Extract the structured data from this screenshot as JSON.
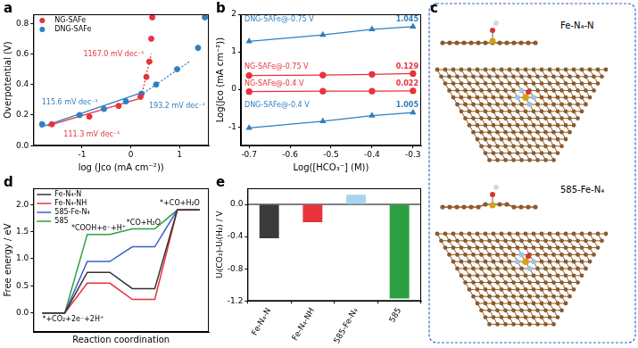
{
  "chart_data": [
    {
      "panel": "a",
      "type": "scatter",
      "x_label": "log (Jco (mA cm⁻²))",
      "y_label": "Overpotential (V)",
      "xlim": [
        -2,
        1.6
      ],
      "xticks": [
        -1,
        0,
        1
      ],
      "ylim": [
        0,
        0.86
      ],
      "yticks": [
        {
          "value": 0,
          "label": "0.0"
        },
        0.2,
        0.4,
        0.6,
        0.8
      ],
      "grid": false,
      "legend": "upper left",
      "series": [
        {
          "name": "NG-SAFe",
          "color": "#e8323c",
          "marker": "circle",
          "x": [
            -1.62,
            -0.85,
            -0.25,
            0.2,
            0.32,
            0.38,
            0.42,
            0.44
          ],
          "values": [
            0.14,
            0.19,
            0.26,
            0.32,
            0.45,
            0.55,
            0.7,
            0.84
          ]
        },
        {
          "name": "DNG-SAFe",
          "color": "#2f7fc1",
          "marker": "circle",
          "x": [
            -1.82,
            -1.05,
            -0.55,
            -0.1,
            0.22,
            0.52,
            0.95,
            1.38,
            1.52
          ],
          "values": [
            0.14,
            0.2,
            0.24,
            0.29,
            0.34,
            0.4,
            0.5,
            0.64,
            0.84
          ]
        }
      ],
      "annotations": [
        {
          "text": "115.6 mV dec⁻¹",
          "color": "#2f7fc1",
          "line_style": "solid",
          "x": [
            -1.85,
            0.25
          ],
          "values": [
            0.12,
            0.35
          ],
          "at": [
            -1.25,
            0.28
          ]
        },
        {
          "text": "111.3 mV dec⁻¹",
          "color": "#e8323c",
          "line_style": "solid",
          "x": [
            -1.7,
            0.2
          ],
          "values": [
            0.13,
            0.31
          ],
          "at": [
            -0.8,
            0.07
          ]
        },
        {
          "text": "1167.0 mV dec⁻¹",
          "color": "#e8323c",
          "line_style": "dotted",
          "x": [
            0.2,
            0.42
          ],
          "values": [
            0.3,
            0.6
          ],
          "at": [
            -0.35,
            0.6
          ]
        },
        {
          "text": "193.2 mV dec⁻¹",
          "color": "#2f7fc1",
          "line_style": "dotted",
          "x": [
            0.2,
            1.2
          ],
          "values": [
            0.33,
            0.55
          ],
          "at": [
            0.95,
            0.26
          ]
        }
      ]
    },
    {
      "panel": "b",
      "type": "line",
      "x_label": "Log([HCO₃⁻] (M))",
      "y_label": "Log(Jco (mA cm⁻²))",
      "x": [
        -0.7,
        -0.52,
        -0.4,
        -0.3
      ],
      "xlim": [
        -0.72,
        -0.28
      ],
      "xticks": [
        -0.7,
        -0.6,
        -0.5,
        -0.4,
        -0.3
      ],
      "ylim": [
        -1.5,
        2
      ],
      "yticks": [
        -1,
        0,
        1,
        2
      ],
      "grid": false,
      "series": [
        {
          "name": "DNG-SAFe@-0.75 V",
          "color": "#2f7fc1",
          "marker": "triangle",
          "values": [
            1.28,
            1.45,
            1.6,
            1.67
          ],
          "slope": 1.045
        },
        {
          "name": "NG-SAFe@-0.75 V",
          "color": "#e8323c",
          "marker": "circle",
          "values": [
            0.37,
            0.38,
            0.4,
            0.42
          ],
          "slope": 0.129
        },
        {
          "name": "NG-SAFe@-0.4 V",
          "color": "#e8323c",
          "marker": "circle",
          "values": [
            -0.06,
            -0.05,
            -0.05,
            -0.04
          ],
          "slope": 0.022
        },
        {
          "name": "DNG-SAFe@-0.4 V",
          "color": "#2f7fc1",
          "marker": "triangle",
          "values": [
            -1.03,
            -0.85,
            -0.7,
            -0.62
          ],
          "slope": 1.005
        }
      ]
    },
    {
      "panel": "d",
      "type": "step",
      "x_label": "Reaction coordination",
      "y_label": "Free energy / eV",
      "categories": [
        "*+CO₂+2e⁻+2H⁺",
        "*COOH+e⁻+H⁺",
        "*CO+H₂O",
        "*+CO+H₂O"
      ],
      "ylim": [
        -0.35,
        2.3
      ],
      "yticks": [
        {
          "value": 0,
          "label": "0.0"
        },
        0.5,
        {
          "value": 1,
          "label": "1.0"
        },
        1.5,
        {
          "value": 2,
          "label": "2.0"
        }
      ],
      "tick_labels": "y",
      "grid": false,
      "legend": "upper left",
      "series": [
        {
          "name": "Fe-N₄-N",
          "color": "#333333",
          "values": [
            0,
            0.75,
            0.45,
            1.9
          ]
        },
        {
          "name": "Fe-N₄-NH",
          "color": "#e8323c",
          "values": [
            0,
            0.55,
            0.25,
            1.9
          ]
        },
        {
          "name": "585-Fe-N₄",
          "color": "#3a5fcd",
          "values": [
            0,
            0.95,
            1.22,
            1.9
          ]
        },
        {
          "name": "585",
          "color": "#2aa040",
          "values": [
            0,
            1.45,
            1.55,
            1.9
          ]
        }
      ]
    },
    {
      "panel": "e",
      "type": "bar",
      "y_label": "Uₗ(CO₂)-Uₗ(H₂) / V",
      "categories": [
        "Fe-N₄-N",
        "Fe-N₄-NH",
        "585-Fe-N₄",
        "585"
      ],
      "values": [
        -0.42,
        -0.22,
        0.12,
        -1.17
      ],
      "colors": [
        "#3a3a3a",
        "#e8323c",
        "#a8d4f0",
        "#2aa040"
      ],
      "ylim": [
        -1.2,
        0.2
      ],
      "yticks": [
        -1.2,
        -0.8,
        -0.4,
        {
          "value": 0,
          "label": "0.0"
        }
      ],
      "grid": false
    }
  ],
  "diagram": {
    "panel": "c",
    "structures": [
      {
        "label": "Fe-N₄-N"
      },
      {
        "label": "585-Fe-N₄"
      }
    ]
  }
}
